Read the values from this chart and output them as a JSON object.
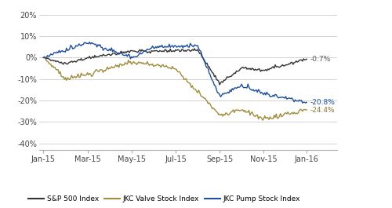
{
  "y_ticks": [
    20,
    10,
    0,
    -10,
    -20,
    -30,
    -40
  ],
  "y_labels": [
    "20%",
    "10%",
    "0%",
    "-10%",
    "-20%",
    "-30%",
    "-40%"
  ],
  "ylim": [
    -43,
    23
  ],
  "xlim_left": -4,
  "x_tick_labels": [
    "Jan-15",
    "Mar-15",
    "May-15",
    "Jul-15",
    "Sep-15",
    "Nov-15",
    "Jan-16"
  ],
  "end_labels": {
    "sp500": "-0.7%",
    "valve": "-24.4%",
    "pump": "-20.8%"
  },
  "end_label_colors": {
    "sp500": "#555555",
    "valve": "#8B7536",
    "pump": "#1F4E9C"
  },
  "colors": {
    "sp500": "#333333",
    "valve": "#A08C3C",
    "pump": "#1F4E9C"
  },
  "legend_labels": [
    "S&P 500 Index",
    "JKC Valve Stock Index",
    "JKC Pump Stock Index"
  ],
  "background_color": "#FFFFFF",
  "grid_color": "#CCCCCC",
  "n_days": 252
}
